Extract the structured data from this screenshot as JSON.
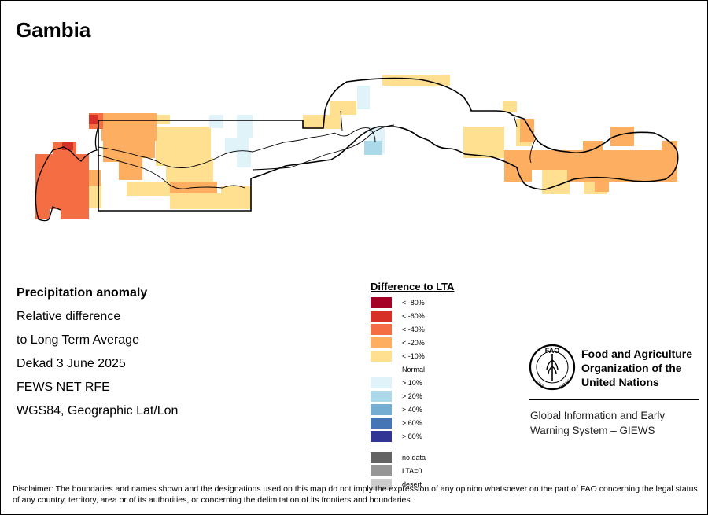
{
  "title": "Gambia",
  "info_lines": [
    "Precipitation anomaly",
    "Relative difference",
    "to Long Term Average",
    "Dekad 3 June 2025",
    "FEWS NET RFE",
    "WGS84, Geographic Lat/Lon"
  ],
  "legend": {
    "title": "Difference to LTA",
    "items": [
      {
        "label": "< -80%",
        "color": "#a50026"
      },
      {
        "label": "< -60%",
        "color": "#d73027"
      },
      {
        "label": "< -40%",
        "color": "#f46d43"
      },
      {
        "label": "< -20%",
        "color": "#fdae61"
      },
      {
        "label": "< -10%",
        "color": "#fee090"
      },
      {
        "label": "Normal",
        "color": "#ffffff"
      },
      {
        "label": "> 10%",
        "color": "#e0f3f8"
      },
      {
        "label": "> 20%",
        "color": "#abd9e9"
      },
      {
        "label": "> 40%",
        "color": "#74add1"
      },
      {
        "label": "> 60%",
        "color": "#4575b4"
      },
      {
        "label": "> 80%",
        "color": "#313695"
      },
      {
        "label": "no data",
        "color": "#636363"
      },
      {
        "label": "LTA=0",
        "color": "#969696"
      },
      {
        "label": "desert",
        "color": "#cccccc"
      }
    ]
  },
  "fao": {
    "name_lines": [
      "Food and Agriculture",
      "Organization of the",
      "United Nations"
    ],
    "logo_letters": "FAO",
    "logo_motto": "FIAT PANIS",
    "logo_motto_left": "FIAT",
    "logo_motto_right": "PANIS"
  },
  "giews_lines": [
    "Global Information and Early",
    "Warning System – GIEWS"
  ],
  "disclaimer": "Disclaimer: The boundaries and names shown and the designations used on this map do not imply the expression of any opinion whatsoever on the part of FAO concerning the legal status of any country, territory, area or of its authorities, or concerning the delimitation of its frontiers and boundaries."
}
